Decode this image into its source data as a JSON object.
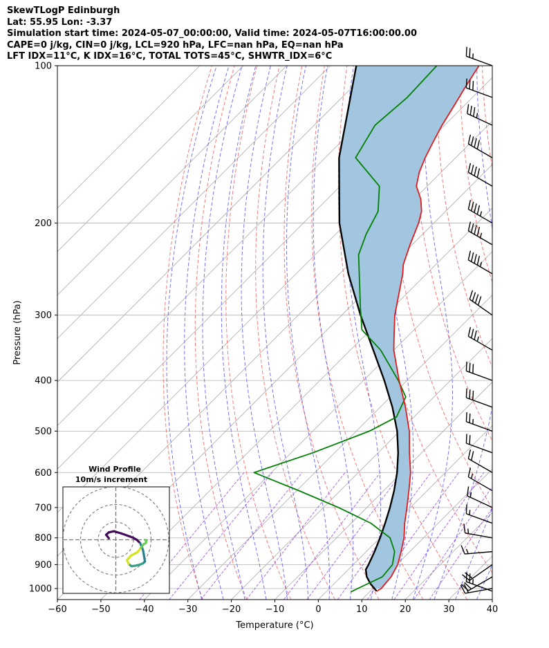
{
  "header": {
    "title": "SkewTLogP Edinburgh",
    "location": "Lat: 55.95   Lon: -3.37",
    "times": "Simulation start time: 2024-05-07_00:00:00, Valid time: 2024-05-07T16:00:00.00",
    "indices_1": "CAPE=0 j/kg, CIN=0 j/kg, LCL=920 hPa, LFC=nan hPa, EQ=nan hPa",
    "indices_2": "LFT IDX=11$^\\circ$C, K IDX=16$^\\circ$C, TOTAL TOTS=45$^\\circ$C, SHWTR_IDX=6$^\\circ$C"
  },
  "chart_data": {
    "type": "line",
    "xlabel": "Temperature ($^\\circ$C)",
    "ylabel": "Pressure (hPa)",
    "xlim": [
      -60,
      40
    ],
    "ylim": [
      1050,
      100
    ],
    "y_scale": "log",
    "skew": true,
    "grid": true,
    "x_ticks": [
      -60,
      -50,
      -40,
      -30,
      -20,
      -10,
      0,
      10,
      20,
      30,
      40
    ],
    "y_ticks": [
      100,
      200,
      300,
      400,
      500,
      600,
      700,
      800,
      900,
      1000
    ],
    "colors": {
      "temperature": "#e41a1c",
      "dewpoint": "#008000",
      "parcel": "#000000",
      "shade": "#a2c6e0",
      "dry_adiabats": "#f06464",
      "moist_adiabats": "#5a5af0",
      "mixing_ratio": "#8a2be2",
      "isotherms": "#aaaaaa"
    },
    "series": [
      {
        "key": "temperature",
        "p": [
          1012,
          1000,
          950,
          900,
          850,
          800,
          750,
          700,
          650,
          600,
          550,
          500,
          450,
          400,
          350,
          330,
          300,
          250,
          240,
          220,
          200,
          190,
          180,
          170,
          160,
          150,
          140,
          130,
          120,
          110,
          100
        ],
        "t": [
          11.5,
          11.9,
          11.5,
          10.2,
          8.0,
          5.5,
          2.3,
          -0.8,
          -4.2,
          -8.0,
          -12.8,
          -17.8,
          -24.2,
          -31.8,
          -40.0,
          -43.0,
          -47.8,
          -55.5,
          -57.5,
          -60.5,
          -63.5,
          -65.5,
          -68.5,
          -72.5,
          -75.0,
          -77.0,
          -78.8,
          -80.6,
          -82.2,
          -84.0,
          -85.8
        ]
      },
      {
        "key": "dewpoint",
        "p": [
          1015,
          1000,
          950,
          900,
          850,
          800,
          750,
          700,
          650,
          600,
          550,
          500,
          470,
          430,
          400,
          350,
          320,
          290,
          250,
          230,
          210,
          190,
          170,
          150,
          130,
          115,
          100
        ],
        "t": [
          5.7,
          6.5,
          9.5,
          9.0,
          6.5,
          2.3,
          -5.5,
          -16.5,
          -29.5,
          -44.0,
          -35.0,
          -27.0,
          -24.0,
          -26.5,
          -32.0,
          -43.0,
          -52.0,
          -57.5,
          -65.5,
          -70.0,
          -73.0,
          -75.5,
          -81.0,
          -93.0,
          -96.0,
          -95.0,
          -95.5
        ]
      },
      {
        "key": "parcel",
        "p": [
          1012,
          980,
          950,
          920,
          900,
          850,
          800,
          750,
          700,
          650,
          600,
          550,
          500,
          450,
          400,
          350,
          300,
          250,
          200,
          150,
          100
        ],
        "t": [
          11.5,
          8.4,
          5.9,
          4.0,
          3.5,
          1.9,
          0.0,
          -2.2,
          -4.7,
          -7.6,
          -11.1,
          -15.4,
          -20.6,
          -27.2,
          -35.2,
          -44.7,
          -55.7,
          -68.0,
          -81.7,
          -96.8,
          -114.0
        ]
      }
    ],
    "wind_barbs": {
      "p": [
        1012,
        1000,
        950,
        900,
        850,
        800,
        750,
        700,
        650,
        600,
        550,
        500,
        450,
        400,
        350,
        300,
        250,
        220,
        200,
        170,
        150,
        130,
        115,
        100
      ],
      "speed_kt": [
        25,
        18,
        20,
        20,
        15,
        15,
        15,
        15,
        15,
        20,
        20,
        25,
        30,
        30,
        35,
        40,
        45,
        45,
        45,
        40,
        40,
        35,
        30,
        25
      ],
      "dir_deg": [
        290,
        260,
        240,
        235,
        265,
        280,
        290,
        295,
        300,
        300,
        290,
        290,
        290,
        290,
        300,
        305,
        300,
        300,
        300,
        300,
        300,
        295,
        290,
        290
      ]
    },
    "hodograph": {
      "title": "Wind Profile",
      "subtitle": "10m/s increment",
      "u": [
        -1.8,
        -2.5,
        -1.8,
        -0.5,
        1.5,
        3.5,
        4.5,
        5.4,
        6.3,
        7.0,
        7.3,
        7.5,
        7.0,
        6.2,
        5.0,
        4.0,
        3.3,
        2.9,
        4.0,
        5.6,
        6.5,
        7.2,
        7.7,
        7.9,
        7.5
      ],
      "v": [
        0.4,
        1.3,
        1.9,
        2.2,
        1.6,
        0.9,
        0.5,
        0.0,
        -0.9,
        -2.6,
        -4.3,
        -5.6,
        -6.1,
        -6.4,
        -6.7,
        -6.8,
        -6.2,
        -5.2,
        -4.0,
        -3.2,
        -2.0,
        -1.1,
        -0.9,
        -0.4,
        0.0
      ]
    }
  }
}
